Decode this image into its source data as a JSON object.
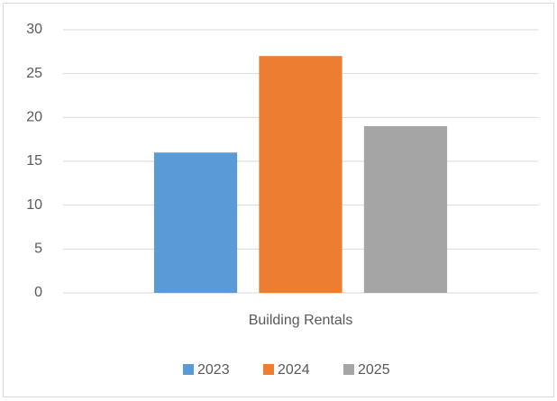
{
  "chart_data": {
    "type": "bar",
    "categories": [
      "Building Rentals"
    ],
    "series": [
      {
        "name": "2023",
        "color": "#5b9bd5",
        "values": [
          16
        ]
      },
      {
        "name": "2024",
        "color": "#ed7d31",
        "values": [
          27
        ]
      },
      {
        "name": "2025",
        "color": "#a5a5a5",
        "values": [
          19
        ]
      }
    ],
    "ylim": [
      0,
      30
    ],
    "yticks": [
      0,
      5,
      10,
      15,
      20,
      25,
      30
    ],
    "grid": true,
    "legend": "bottom"
  }
}
